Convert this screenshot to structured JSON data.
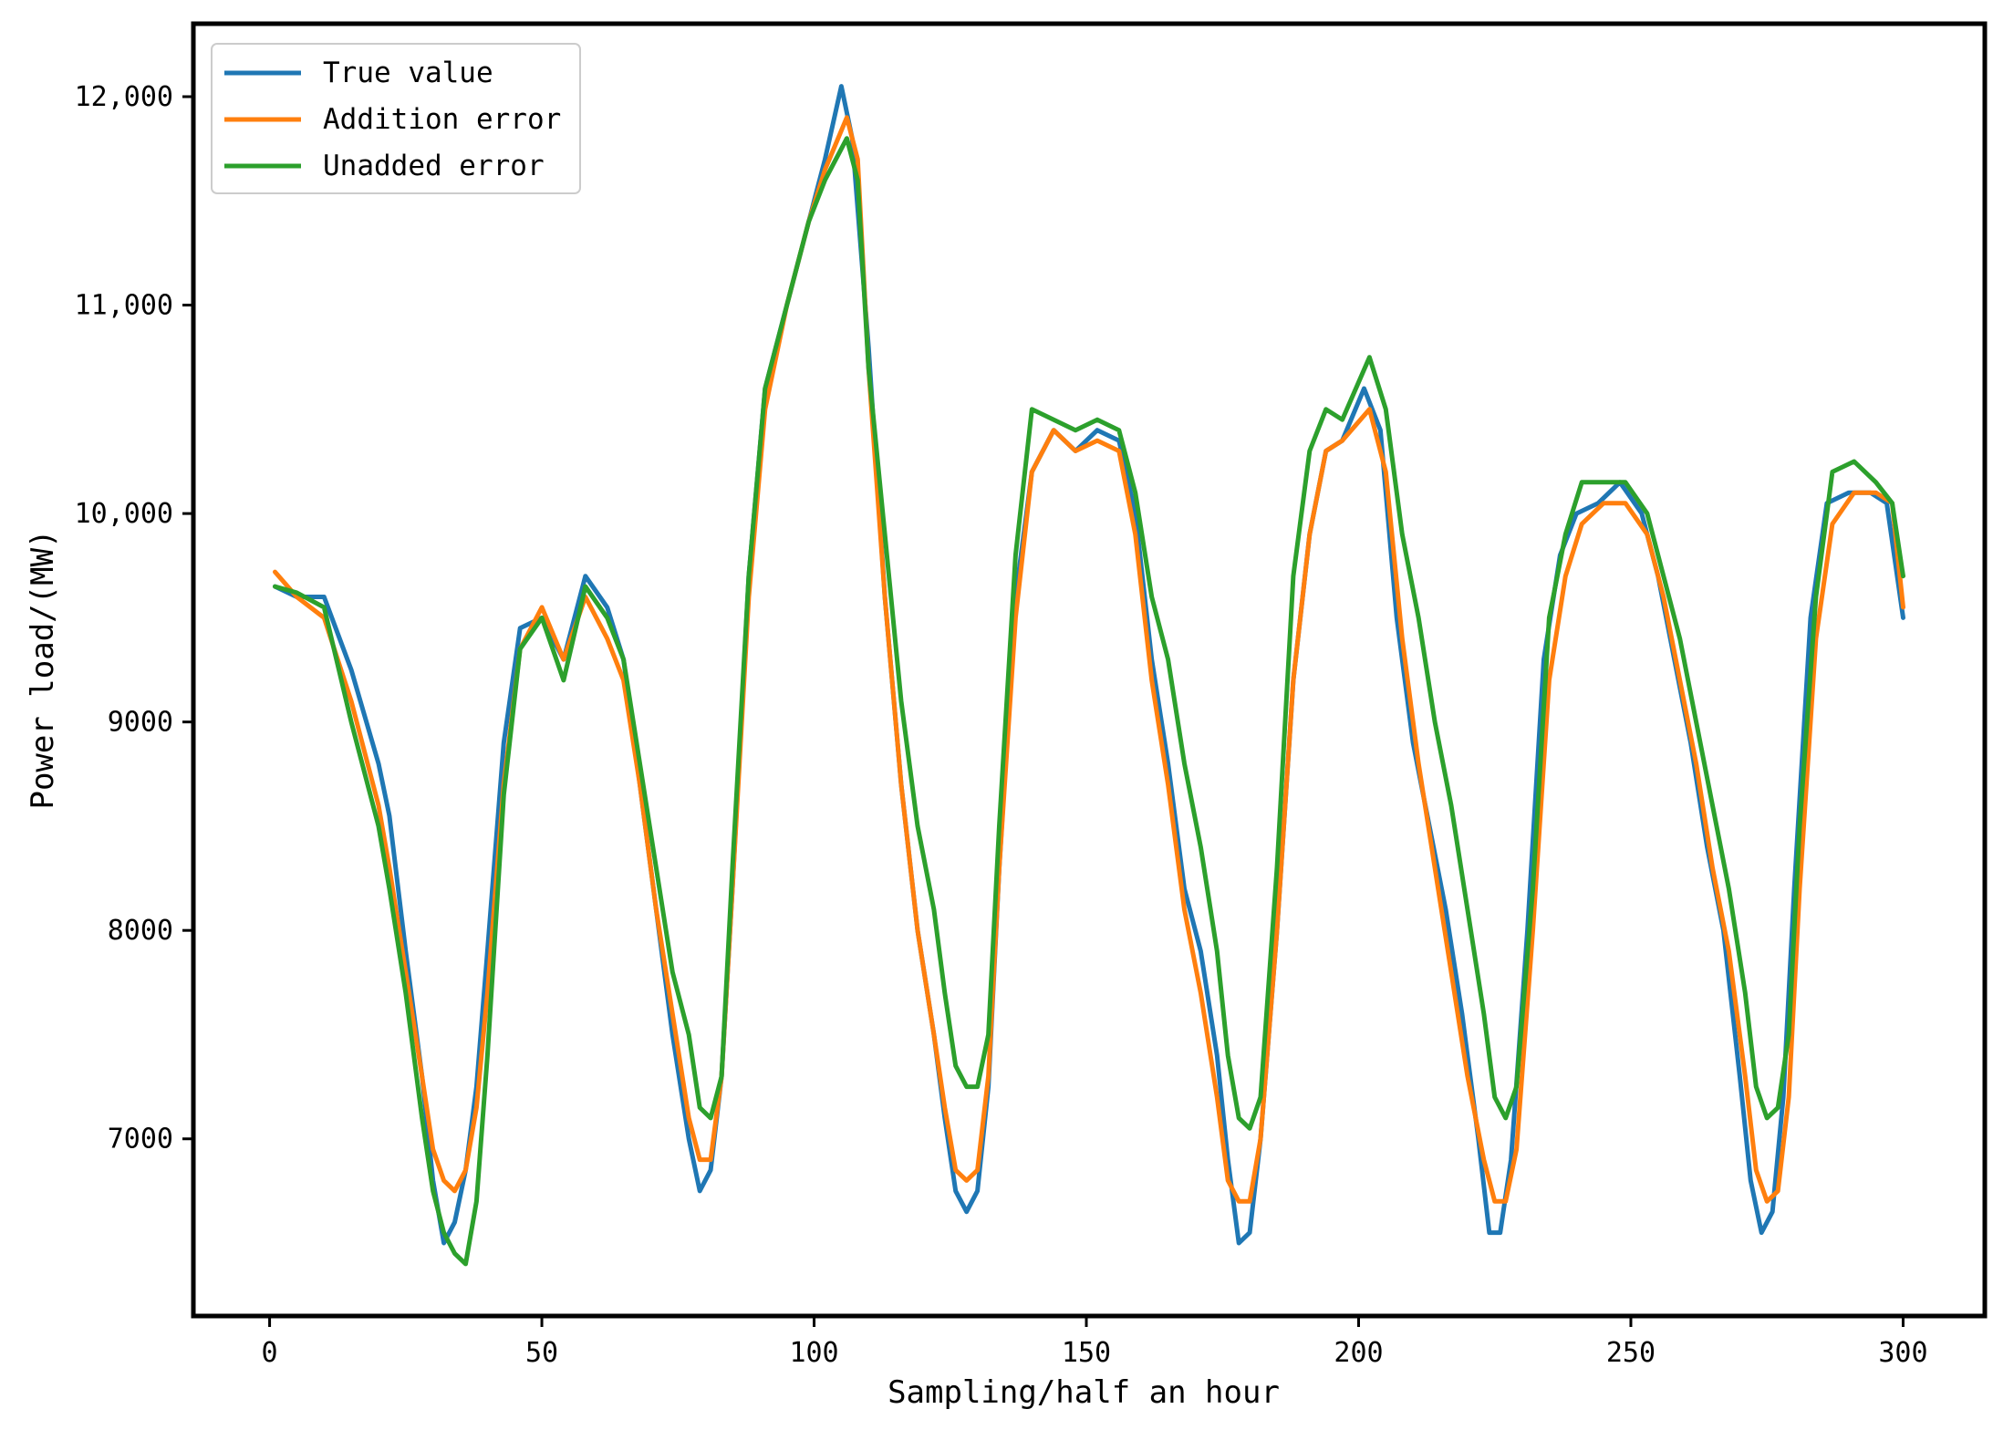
{
  "chart_data": {
    "type": "line",
    "xlabel": "Sampling/half an hour",
    "ylabel": "Power load/(MW)",
    "xlim": [
      -14,
      315
    ],
    "ylim": [
      6150,
      12350
    ],
    "xticks": [
      0,
      50,
      100,
      150,
      200,
      250,
      300
    ],
    "xtick_labels": [
      "0",
      "50",
      "100",
      "150",
      "200",
      "250",
      "300"
    ],
    "yticks": [
      7000,
      8000,
      9000,
      10000,
      11000,
      12000
    ],
    "ytick_labels": [
      "7000",
      "8000",
      "9000",
      "10,000",
      "11,000",
      "12,000"
    ],
    "grid": false,
    "legend_position": "top-left",
    "series": [
      {
        "name": "True value",
        "color": "#1f77b4",
        "x": [
          1,
          5,
          10,
          15,
          20,
          22,
          25,
          28,
          30,
          32,
          34,
          36,
          38,
          40,
          43,
          46,
          50,
          54,
          58,
          62,
          65,
          68,
          71,
          74,
          77,
          79,
          81,
          83,
          85,
          88,
          91,
          95,
          99,
          102,
          105,
          107,
          110,
          113,
          116,
          119,
          122,
          124,
          126,
          128,
          130,
          132,
          134,
          137,
          140,
          144,
          148,
          152,
          156,
          159,
          162,
          165,
          168,
          171,
          174,
          176,
          178,
          180,
          182,
          185,
          188,
          191,
          194,
          197,
          201,
          204,
          207,
          210,
          213,
          216,
          219,
          222,
          224,
          226,
          228,
          231,
          234,
          237,
          240,
          244,
          248,
          252,
          255,
          258,
          261,
          264,
          267,
          270,
          272,
          274,
          276,
          278,
          280,
          283,
          286,
          290,
          294,
          297,
          300
        ],
        "y": [
          9650,
          9600,
          9600,
          9250,
          8800,
          8550,
          7900,
          7300,
          6800,
          6500,
          6600,
          6850,
          7250,
          7900,
          8900,
          9450,
          9500,
          9300,
          9700,
          9550,
          9300,
          8700,
          8100,
          7500,
          7000,
          6750,
          6850,
          7300,
          8200,
          9700,
          10600,
          11000,
          11400,
          11700,
          12050,
          11800,
          10800,
          9600,
          8700,
          8000,
          7500,
          7100,
          6750,
          6650,
          6750,
          7250,
          8300,
          9600,
          10200,
          10400,
          10300,
          10400,
          10350,
          10000,
          9300,
          8800,
          8200,
          7900,
          7400,
          6900,
          6500,
          6550,
          7000,
          8000,
          9200,
          9900,
          10300,
          10350,
          10600,
          10400,
          9500,
          8900,
          8500,
          8100,
          7600,
          7000,
          6550,
          6550,
          6900,
          8000,
          9300,
          9800,
          10000,
          10050,
          10150,
          10000,
          9700,
          9300,
          8900,
          8400,
          8000,
          7300,
          6800,
          6550,
          6650,
          7200,
          8200,
          9500,
          10050,
          10100,
          10100,
          10050,
          9500
        ]
      },
      {
        "name": "Addition error",
        "color": "#ff7f0e",
        "x": [
          1,
          5,
          10,
          15,
          20,
          22,
          25,
          28,
          30,
          32,
          34,
          36,
          38,
          40,
          43,
          46,
          50,
          54,
          58,
          62,
          65,
          68,
          71,
          74,
          77,
          79,
          81,
          83,
          85,
          88,
          91,
          95,
          99,
          102,
          106,
          108,
          110,
          113,
          116,
          119,
          122,
          124,
          126,
          128,
          130,
          132,
          134,
          137,
          140,
          144,
          148,
          152,
          156,
          159,
          162,
          165,
          168,
          171,
          174,
          176,
          178,
          180,
          182,
          185,
          188,
          191,
          194,
          197,
          202,
          205,
          208,
          211,
          214,
          217,
          220,
          223,
          225,
          227,
          229,
          232,
          235,
          238,
          241,
          245,
          249,
          253,
          256,
          259,
          262,
          265,
          268,
          271,
          273,
          275,
          277,
          279,
          281,
          284,
          287,
          291,
          295,
          298,
          300
        ],
        "y": [
          9720,
          9600,
          9500,
          9100,
          8600,
          8300,
          7800,
          7300,
          6950,
          6800,
          6750,
          6850,
          7150,
          7700,
          8700,
          9350,
          9550,
          9300,
          9600,
          9400,
          9200,
          8700,
          8100,
          7600,
          7100,
          6900,
          6900,
          7300,
          8200,
          9600,
          10500,
          11000,
          11400,
          11650,
          11900,
          11700,
          10700,
          9600,
          8700,
          8000,
          7500,
          7150,
          6850,
          6800,
          6850,
          7300,
          8300,
          9500,
          10200,
          10400,
          10300,
          10350,
          10300,
          9900,
          9200,
          8700,
          8100,
          7700,
          7200,
          6800,
          6700,
          6700,
          7000,
          8000,
          9200,
          9900,
          10300,
          10350,
          10500,
          10200,
          9400,
          8800,
          8300,
          7800,
          7300,
          6900,
          6700,
          6700,
          6950,
          8000,
          9200,
          9700,
          9950,
          10050,
          10050,
          9900,
          9600,
          9200,
          8800,
          8300,
          7900,
          7300,
          6850,
          6700,
          6750,
          7200,
          8200,
          9400,
          9950,
          10100,
          10100,
          10050,
          9550
        ]
      },
      {
        "name": "Unadded error",
        "color": "#2ca02c",
        "x": [
          1,
          5,
          10,
          15,
          20,
          22,
          25,
          28,
          30,
          32,
          34,
          36,
          38,
          40,
          43,
          46,
          50,
          54,
          58,
          62,
          65,
          68,
          71,
          74,
          77,
          79,
          81,
          83,
          85,
          88,
          91,
          95,
          99,
          102,
          106,
          108,
          110,
          113,
          116,
          119,
          122,
          124,
          126,
          128,
          130,
          132,
          134,
          137,
          140,
          144,
          148,
          152,
          156,
          159,
          162,
          165,
          168,
          171,
          174,
          176,
          178,
          180,
          182,
          185,
          188,
          191,
          194,
          197,
          202,
          205,
          208,
          211,
          214,
          217,
          220,
          223,
          225,
          227,
          229,
          232,
          235,
          238,
          241,
          245,
          249,
          253,
          256,
          259,
          262,
          265,
          268,
          271,
          273,
          275,
          277,
          279,
          281,
          284,
          287,
          291,
          295,
          298,
          300
        ],
        "y": [
          9650,
          9620,
          9550,
          9000,
          8500,
          8200,
          7700,
          7100,
          6750,
          6550,
          6450,
          6400,
          6700,
          7400,
          8650,
          9350,
          9500,
          9200,
          9650,
          9500,
          9300,
          8800,
          8300,
          7800,
          7500,
          7150,
          7100,
          7300,
          8300,
          9700,
          10600,
          11000,
          11400,
          11600,
          11800,
          11600,
          10700,
          9900,
          9100,
          8500,
          8100,
          7700,
          7350,
          7250,
          7250,
          7500,
          8500,
          9800,
          10500,
          10450,
          10400,
          10450,
          10400,
          10100,
          9600,
          9300,
          8800,
          8400,
          7900,
          7400,
          7100,
          7050,
          7200,
          8300,
          9700,
          10300,
          10500,
          10450,
          10750,
          10500,
          9900,
          9500,
          9000,
          8600,
          8100,
          7600,
          7200,
          7100,
          7250,
          8200,
          9500,
          9900,
          10150,
          10150,
          10150,
          10000,
          9700,
          9400,
          9000,
          8600,
          8200,
          7700,
          7250,
          7100,
          7150,
          7500,
          8500,
          9600,
          10200,
          10250,
          10150,
          10050,
          9700
        ]
      }
    ]
  }
}
